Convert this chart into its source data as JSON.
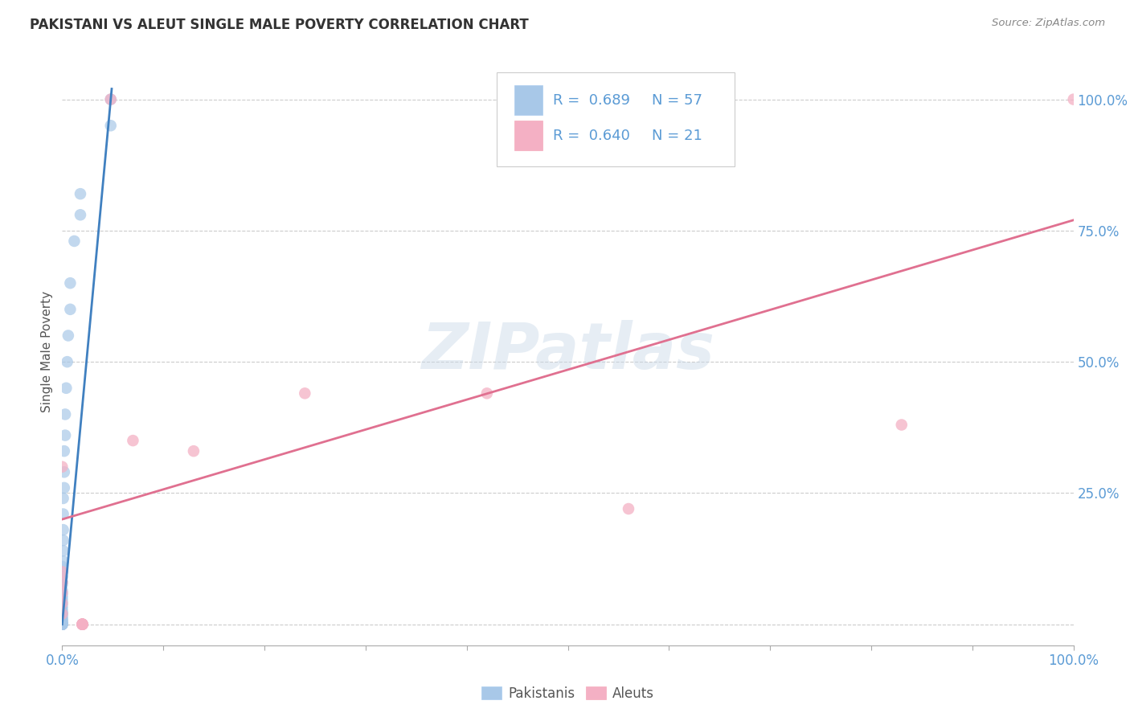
{
  "title": "PAKISTANI VS ALEUT SINGLE MALE POVERTY CORRELATION CHART",
  "source": "Source: ZipAtlas.com",
  "ylabel": "Single Male Poverty",
  "pakistani_R": 0.689,
  "pakistani_N": 57,
  "aleut_R": 0.64,
  "aleut_N": 21,
  "blue_color": "#a8c8e8",
  "pink_color": "#f4b0c4",
  "blue_line_color": "#4080c0",
  "pink_line_color": "#e07090",
  "axis_label_color": "#5b9bd5",
  "title_color": "#333333",
  "watermark_color": "#c8d8e8",
  "watermark_text": "ZIPatlas",
  "legend_text_color": "#5b9bd5",
  "pakistani_x": [
    0.018,
    0.048,
    0.048,
    0.018,
    0.012,
    0.008,
    0.008,
    0.006,
    0.005,
    0.004,
    0.003,
    0.003,
    0.002,
    0.002,
    0.002,
    0.001,
    0.001,
    0.001,
    0.001,
    0.001,
    0.001,
    0.0,
    0.0,
    0.0,
    0.0,
    0.0,
    0.0,
    0.0,
    0.0,
    0.0,
    0.0,
    0.0,
    0.0,
    0.0,
    0.0,
    0.0,
    0.0,
    0.0,
    0.0,
    0.0,
    0.0,
    0.0,
    0.0,
    0.0,
    0.0,
    0.0,
    0.0,
    0.0,
    0.0,
    0.0,
    0.0,
    0.0,
    0.0,
    0.0,
    0.0,
    0.0,
    0.0
  ],
  "pakistani_y": [
    0.78,
    1.0,
    0.95,
    0.82,
    0.73,
    0.65,
    0.6,
    0.55,
    0.5,
    0.45,
    0.4,
    0.36,
    0.33,
    0.29,
    0.26,
    0.24,
    0.21,
    0.18,
    0.16,
    0.14,
    0.12,
    0.11,
    0.1,
    0.09,
    0.08,
    0.075,
    0.065,
    0.06,
    0.055,
    0.05,
    0.045,
    0.04,
    0.035,
    0.03,
    0.025,
    0.022,
    0.02,
    0.018,
    0.015,
    0.012,
    0.01,
    0.008,
    0.006,
    0.005,
    0.003,
    0.002,
    0.0,
    0.0,
    0.0,
    0.0,
    0.0,
    0.0,
    0.0,
    0.0,
    0.0,
    0.0,
    0.0
  ],
  "aleut_x": [
    0.048,
    0.24,
    0.42,
    0.56,
    0.83,
    1.0,
    0.0,
    0.0,
    0.0,
    0.0,
    0.0,
    0.0,
    0.07,
    0.13,
    0.02,
    0.02,
    0.02,
    0.02,
    0.02,
    0.02,
    0.02
  ],
  "aleut_y": [
    1.0,
    0.44,
    0.44,
    0.22,
    0.38,
    1.0,
    0.3,
    0.1,
    0.08,
    0.06,
    0.04,
    0.02,
    0.35,
    0.33,
    0.0,
    0.0,
    0.0,
    0.0,
    0.0,
    0.0,
    0.0
  ],
  "pak_line": [
    0.0,
    0.0,
    0.049,
    1.02
  ],
  "aleut_line": [
    0.0,
    0.2,
    1.0,
    0.77
  ],
  "xlim": [
    0.0,
    1.0
  ],
  "ylim": [
    -0.04,
    1.08
  ],
  "yticks": [
    0.0,
    0.25,
    0.5,
    0.75,
    1.0
  ],
  "ytick_labels": [
    "",
    "25.0%",
    "50.0%",
    "75.0%",
    "100.0%"
  ],
  "xtick_labels_show": [
    "0.0%",
    "100.0%"
  ]
}
